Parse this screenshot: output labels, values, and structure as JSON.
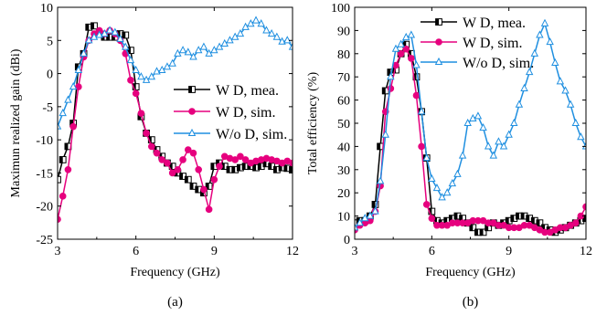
{
  "chart_data": [
    {
      "type": "line",
      "caption": "(a)",
      "xlabel": "Frequency (GHz)",
      "ylabel": "Maximun realized gain (dBi)",
      "xlim": [
        3,
        12
      ],
      "ylim": [
        -25,
        10
      ],
      "xticks": [
        3,
        6,
        9,
        12
      ],
      "yticks": [
        -25,
        -20,
        -15,
        -10,
        -5,
        0,
        5,
        10
      ],
      "legend_position": "center-right",
      "series": [
        {
          "name": "W D, mea.",
          "color": "#000000",
          "marker": "half-square",
          "x": [
            3.0,
            3.2,
            3.4,
            3.6,
            3.8,
            4.0,
            4.2,
            4.4,
            4.6,
            4.8,
            5.0,
            5.2,
            5.4,
            5.6,
            5.8,
            6.0,
            6.2,
            6.4,
            6.6,
            6.8,
            7.0,
            7.2,
            7.4,
            7.6,
            7.8,
            8.0,
            8.2,
            8.4,
            8.6,
            8.8,
            9.0,
            9.2,
            9.4,
            9.6,
            9.8,
            10.0,
            10.2,
            10.4,
            10.6,
            10.8,
            11.0,
            11.2,
            11.4,
            11.6,
            11.8,
            12.0
          ],
          "y": [
            -16,
            -13,
            -11,
            -7.5,
            1,
            3,
            7,
            7.2,
            6,
            5.5,
            5.5,
            5.5,
            6,
            5.8,
            3.5,
            -2,
            -6.5,
            -9,
            -10,
            -11.5,
            -12.5,
            -13.5,
            -14,
            -15,
            -15.5,
            -16,
            -17,
            -17.5,
            -18,
            -17,
            -14,
            -13.5,
            -14,
            -14.5,
            -14.5,
            -14.2,
            -14,
            -14,
            -14.2,
            -14,
            -13.6,
            -14,
            -14.5,
            -14.2,
            -14.3,
            -14.5
          ]
        },
        {
          "name": "W D, sim.",
          "color": "#e6007e",
          "marker": "circle",
          "x": [
            3.0,
            3.2,
            3.4,
            3.6,
            3.8,
            4.0,
            4.2,
            4.4,
            4.6,
            4.8,
            5.0,
            5.2,
            5.4,
            5.6,
            5.8,
            6.0,
            6.2,
            6.4,
            6.6,
            6.8,
            7.0,
            7.2,
            7.4,
            7.6,
            7.8,
            8.0,
            8.2,
            8.4,
            8.6,
            8.8,
            9.0,
            9.2,
            9.4,
            9.6,
            9.8,
            10.0,
            10.2,
            10.4,
            10.6,
            10.8,
            11.0,
            11.2,
            11.4,
            11.6,
            11.8,
            12.0
          ],
          "y": [
            -22,
            -18.5,
            -14.5,
            -8,
            -2,
            2.5,
            5,
            6,
            6.5,
            6,
            6.5,
            6,
            5,
            3,
            -1,
            -3,
            -6,
            -9,
            -11,
            -12,
            -13,
            -13.5,
            -15,
            -14.5,
            -13,
            -11.5,
            -12,
            -14.5,
            -17.5,
            -20.5,
            -16,
            -14,
            -12.5,
            -12.8,
            -13,
            -12.5,
            -13,
            -13.5,
            -13.2,
            -13,
            -12.8,
            -13,
            -13.2,
            -13.5,
            -13.2,
            -13.5
          ]
        },
        {
          "name": "W/o D, sim.",
          "color": "#1f8fe0",
          "marker": "triangle",
          "x": [
            3.0,
            3.2,
            3.4,
            3.6,
            3.8,
            4.0,
            4.2,
            4.4,
            4.6,
            4.8,
            5.0,
            5.2,
            5.4,
            5.6,
            5.8,
            6.0,
            6.2,
            6.4,
            6.6,
            6.8,
            7.0,
            7.2,
            7.4,
            7.6,
            7.8,
            8.0,
            8.2,
            8.4,
            8.6,
            8.8,
            9.0,
            9.2,
            9.4,
            9.6,
            9.8,
            10.0,
            10.2,
            10.4,
            10.6,
            10.8,
            11.0,
            11.2,
            11.4,
            11.6,
            11.8,
            12.0
          ],
          "y": [
            -8,
            -6,
            -4,
            -2,
            0.5,
            3,
            5,
            5.5,
            5.8,
            6,
            6.5,
            6.2,
            5.2,
            4,
            2,
            0.5,
            -0.5,
            -1,
            -0.5,
            0.3,
            0.5,
            1,
            1.5,
            3,
            3.5,
            3.2,
            2.5,
            3.5,
            4,
            3,
            3.5,
            4,
            4.5,
            5,
            5.5,
            6,
            7,
            7.5,
            8,
            7.5,
            6.5,
            6,
            5.5,
            4.8,
            5,
            4
          ]
        }
      ]
    },
    {
      "type": "line",
      "caption": "(b)",
      "xlabel": "Frequency (GHz)",
      "ylabel": "Total efficiency (%)",
      "xlim": [
        3,
        12
      ],
      "ylim": [
        0,
        100
      ],
      "xticks": [
        3,
        6,
        9,
        12
      ],
      "yticks": [
        0,
        10,
        20,
        30,
        40,
        50,
        60,
        70,
        80,
        90,
        100
      ],
      "legend_position": "top-right",
      "series": [
        {
          "name": "W D, mea.",
          "color": "#000000",
          "marker": "half-square",
          "x": [
            3.0,
            3.2,
            3.4,
            3.6,
            3.8,
            4.0,
            4.2,
            4.4,
            4.6,
            4.8,
            5.0,
            5.2,
            5.4,
            5.6,
            5.8,
            6.0,
            6.2,
            6.4,
            6.6,
            6.8,
            7.0,
            7.2,
            7.4,
            7.6,
            7.8,
            8.0,
            8.2,
            8.4,
            8.6,
            8.8,
            9.0,
            9.2,
            9.4,
            9.6,
            9.8,
            10.0,
            10.2,
            10.4,
            10.6,
            10.8,
            11.0,
            11.2,
            11.4,
            11.6,
            11.8,
            12.0
          ],
          "y": [
            7,
            8,
            8,
            10,
            15,
            40,
            64,
            72,
            73,
            80,
            84,
            80,
            70,
            55,
            35,
            12,
            8,
            7,
            8,
            9,
            10,
            9,
            7,
            5,
            3,
            3,
            5,
            7,
            6,
            7,
            8,
            9,
            10,
            10,
            9,
            8,
            7,
            5,
            4,
            3,
            4,
            5,
            6,
            7,
            8,
            9
          ]
        },
        {
          "name": "W D, sim.",
          "color": "#e6007e",
          "marker": "circle",
          "x": [
            3.0,
            3.2,
            3.4,
            3.6,
            3.8,
            4.0,
            4.2,
            4.4,
            4.6,
            4.8,
            5.0,
            5.2,
            5.4,
            5.6,
            5.8,
            6.0,
            6.2,
            6.4,
            6.6,
            6.8,
            7.0,
            7.2,
            7.4,
            7.6,
            7.8,
            8.0,
            8.2,
            8.4,
            8.6,
            8.8,
            9.0,
            9.2,
            9.4,
            9.6,
            9.8,
            10.0,
            10.2,
            10.4,
            10.6,
            10.8,
            11.0,
            11.2,
            11.4,
            11.6,
            11.8,
            12.0
          ],
          "y": [
            4,
            6,
            7,
            8,
            12,
            23,
            55,
            65,
            75,
            80,
            82,
            78,
            62,
            40,
            15,
            9,
            6,
            6,
            6,
            7,
            7,
            7,
            7,
            8,
            8,
            8,
            7,
            7,
            6,
            6,
            5,
            5,
            5,
            6,
            6,
            5,
            4,
            3,
            3,
            4,
            5,
            5,
            6,
            7,
            10,
            14
          ]
        },
        {
          "name": "W/o D, sim.",
          "color": "#1f8fe0",
          "marker": "triangle",
          "x": [
            3.0,
            3.2,
            3.4,
            3.6,
            3.8,
            4.0,
            4.2,
            4.4,
            4.6,
            4.8,
            5.0,
            5.2,
            5.4,
            5.6,
            5.8,
            6.0,
            6.2,
            6.4,
            6.6,
            6.8,
            7.0,
            7.2,
            7.4,
            7.6,
            7.8,
            8.0,
            8.2,
            8.4,
            8.6,
            8.8,
            9.0,
            9.2,
            9.4,
            9.6,
            9.8,
            10.0,
            10.2,
            10.4,
            10.6,
            10.8,
            11.0,
            11.2,
            11.4,
            11.6,
            11.8,
            12.0
          ],
          "y": [
            5,
            7,
            9,
            10,
            12,
            25,
            45,
            70,
            82,
            84,
            87,
            88,
            75,
            55,
            35,
            26,
            22,
            18,
            20,
            24,
            28,
            36,
            50,
            52,
            53,
            48,
            40,
            36,
            42,
            40,
            45,
            50,
            58,
            65,
            72,
            80,
            88,
            93,
            85,
            76,
            68,
            64,
            58,
            50,
            44,
            40
          ]
        }
      ]
    }
  ]
}
